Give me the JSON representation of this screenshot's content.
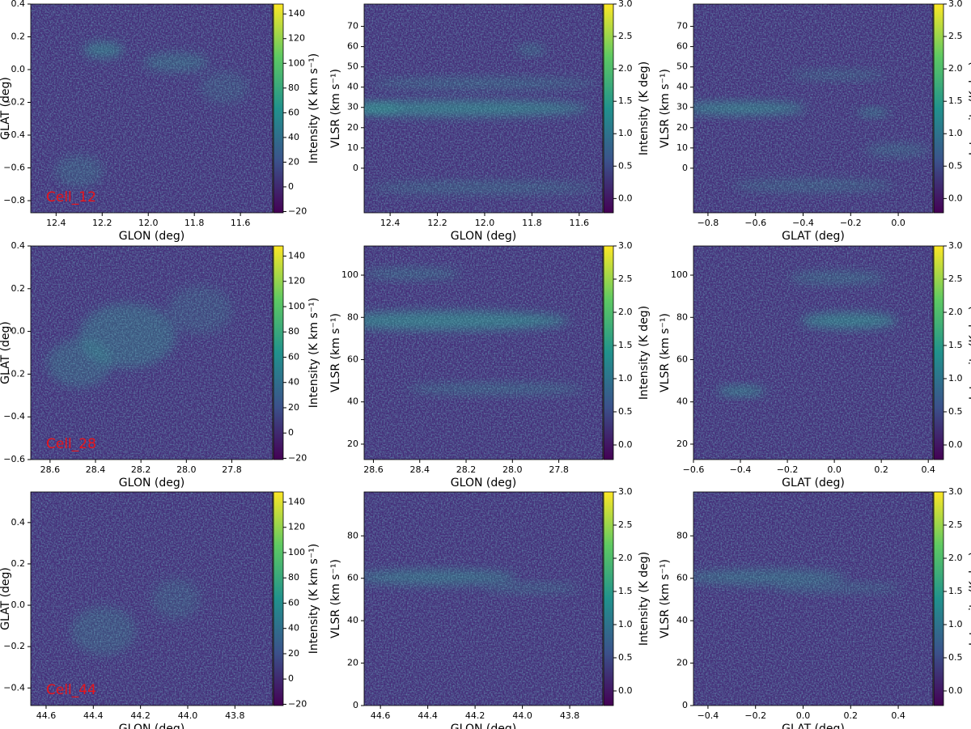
{
  "chart_data": [
    {
      "type": "heatmap",
      "xlabel": "GLON (deg)",
      "ylabel": "GLAT (deg)",
      "xlim": [
        12.51,
        11.46
      ],
      "ylim": [
        -0.874,
        0.4
      ],
      "xticks": [
        12.4,
        12.2,
        {
          "value": 12,
          "label": "12.0"
        },
        11.8,
        11.6
      ],
      "yticks": [
        0.4,
        0.2,
        {
          "value": 0,
          "label": "0.0"
        },
        {
          "value": -0.2,
          "label": "−0.2"
        },
        {
          "value": -0.4,
          "label": "−0.4"
        },
        {
          "value": -0.6,
          "label": "−0.6"
        },
        {
          "value": -0.8,
          "label": "−0.8"
        }
      ],
      "colorbar": {
        "label": "Intensity (K km s⁻¹)",
        "lim": [
          -21,
          148
        ],
        "ticks": [
          {
            "value": -20,
            "label": "−20"
          },
          0,
          20,
          40,
          60,
          80,
          100,
          120,
          140
        ]
      },
      "annotation": "Cell_12"
    },
    {
      "type": "heatmap",
      "xlabel": "GLON (deg)",
      "ylabel": "VLSR (km s⁻¹)",
      "xlim": [
        12.51,
        11.5
      ],
      "ylim": [
        -22,
        81
      ],
      "xticks": [
        12.4,
        12.2,
        {
          "value": 12,
          "label": "12.0"
        },
        11.8,
        11.6
      ],
      "yticks": [
        0,
        10,
        20,
        30,
        40,
        50,
        60,
        70
      ],
      "colorbar": {
        "label": "Intensity (K deg)",
        "lim": [
          -0.22,
          3.0
        ],
        "ticks": [
          {
            "value": 0,
            "label": "0.0"
          },
          0.5,
          {
            "value": 1,
            "label": "1.0"
          },
          1.5,
          {
            "value": 2,
            "label": "2.0"
          },
          2.5,
          {
            "value": 3,
            "label": "3.0"
          }
        ]
      }
    },
    {
      "type": "heatmap",
      "xlabel": "GLAT (deg)",
      "ylabel": "VLSR (km s⁻¹)",
      "xlim": [
        -0.861,
        0.146
      ],
      "ylim": [
        -22,
        81
      ],
      "xticks": [
        {
          "value": -0.8,
          "label": "−0.8"
        },
        {
          "value": -0.6,
          "label": "−0.6"
        },
        {
          "value": -0.4,
          "label": "−0.4"
        },
        {
          "value": -0.2,
          "label": "−0.2"
        },
        {
          "value": 0,
          "label": "0.0"
        }
      ],
      "yticks": [
        0,
        10,
        20,
        30,
        40,
        50,
        60,
        70
      ],
      "colorbar": {
        "label": "Intensity (K deg)",
        "lim": [
          -0.22,
          3.0
        ],
        "ticks": [
          {
            "value": 0,
            "label": "0.0"
          },
          0.5,
          {
            "value": 1,
            "label": "1.0"
          },
          1.5,
          {
            "value": 2,
            "label": "2.0"
          },
          2.5,
          {
            "value": 3,
            "label": "3.0"
          }
        ]
      }
    },
    {
      "type": "heatmap",
      "xlabel": "GLON (deg)",
      "ylabel": "GLAT (deg)",
      "xlim": [
        28.685,
        27.62
      ],
      "ylim": [
        -0.6,
        0.4
      ],
      "xticks": [
        28.6,
        28.4,
        28.2,
        {
          "value": 28,
          "label": "28.0"
        },
        27.8
      ],
      "yticks": [
        0.4,
        0.2,
        {
          "value": 0,
          "label": "0.0"
        },
        {
          "value": -0.2,
          "label": "−0.2"
        },
        {
          "value": -0.4,
          "label": "−0.4"
        },
        {
          "value": -0.6,
          "label": "−0.6"
        }
      ],
      "colorbar": {
        "label": "Intensity (K km s⁻¹)",
        "lim": [
          -21,
          148
        ],
        "ticks": [
          {
            "value": -20,
            "label": "−20"
          },
          0,
          20,
          40,
          60,
          80,
          100,
          120,
          140
        ]
      },
      "annotation": "Cell_28"
    },
    {
      "type": "heatmap",
      "xlabel": "GLON (deg)",
      "ylabel": "VLSR (km s⁻¹)",
      "xlim": [
        28.64,
        27.61
      ],
      "ylim": [
        12.7,
        113.8
      ],
      "xticks": [
        28.6,
        28.4,
        28.2,
        {
          "value": 28,
          "label": "28.0"
        },
        27.8
      ],
      "yticks": [
        20,
        40,
        60,
        80,
        100
      ],
      "colorbar": {
        "label": "Intensity (K deg)",
        "lim": [
          -0.22,
          3.0
        ],
        "ticks": [
          {
            "value": 0,
            "label": "0.0"
          },
          0.5,
          {
            "value": 1,
            "label": "1.0"
          },
          1.5,
          {
            "value": 2,
            "label": "2.0"
          },
          2.5,
          {
            "value": 3,
            "label": "3.0"
          }
        ]
      }
    },
    {
      "type": "heatmap",
      "xlabel": "GLAT (deg)",
      "ylabel": "VLSR (km s⁻¹)",
      "xlim": [
        -0.6,
        0.42
      ],
      "ylim": [
        12.7,
        113.8
      ],
      "xticks": [
        {
          "value": -0.6,
          "label": "−0.6"
        },
        {
          "value": -0.4,
          "label": "−0.4"
        },
        {
          "value": -0.2,
          "label": "−0.2"
        },
        {
          "value": 0,
          "label": "0.0"
        },
        0.2,
        0.4
      ],
      "yticks": [
        20,
        40,
        60,
        80,
        100
      ],
      "colorbar": {
        "label": "Intensity (K deg)",
        "lim": [
          -0.22,
          3.0
        ],
        "ticks": [
          {
            "value": 0,
            "label": "0.0"
          },
          0.5,
          {
            "value": 1,
            "label": "1.0"
          },
          1.5,
          {
            "value": 2,
            "label": "2.0"
          },
          2.5,
          {
            "value": 3,
            "label": "3.0"
          }
        ]
      }
    },
    {
      "type": "heatmap",
      "xlabel": "GLON (deg)",
      "ylabel": "GLAT (deg)",
      "xlim": [
        44.665,
        43.64
      ],
      "ylim": [
        -0.485,
        0.548
      ],
      "xticks": [
        44.6,
        44.4,
        44.2,
        {
          "value": 44,
          "label": "44.0"
        },
        43.8
      ],
      "yticks": [
        {
          "value": -0.4,
          "label": "−0.4"
        },
        {
          "value": -0.2,
          "label": "−0.2"
        },
        {
          "value": 0,
          "label": "0.0"
        },
        0.2,
        0.4
      ],
      "colorbar": {
        "label": "Intensity (K km s⁻¹)",
        "lim": [
          -21,
          148
        ],
        "ticks": [
          {
            "value": -20,
            "label": "−20"
          },
          0,
          20,
          40,
          60,
          80,
          100,
          120,
          140
        ]
      },
      "annotation": "Cell_44"
    },
    {
      "type": "heatmap",
      "xlabel": "GLON (deg)",
      "ylabel": "VLSR (km s⁻¹)",
      "xlim": [
        44.669,
        43.66
      ],
      "ylim": [
        0,
        100.7
      ],
      "xticks": [
        44.6,
        44.4,
        44.2,
        {
          "value": 44,
          "label": "44.0"
        },
        43.8
      ],
      "yticks": [
        0,
        20,
        40,
        60,
        80
      ],
      "colorbar": {
        "label": "Intensity (K deg)",
        "lim": [
          -0.22,
          3.0
        ],
        "ticks": [
          {
            "value": 0,
            "label": "0.0"
          },
          0.5,
          {
            "value": 1,
            "label": "1.0"
          },
          1.5,
          {
            "value": 2,
            "label": "2.0"
          },
          2.5,
          {
            "value": 3,
            "label": "3.0"
          }
        ]
      }
    },
    {
      "type": "heatmap",
      "xlabel": "GLAT (deg)",
      "ylabel": "VLSR (km s⁻¹)",
      "xlim": [
        -0.461,
        0.546
      ],
      "ylim": [
        0,
        100.7
      ],
      "xticks": [
        {
          "value": -0.4,
          "label": "−0.4"
        },
        {
          "value": -0.2,
          "label": "−0.2"
        },
        {
          "value": 0,
          "label": "0.0"
        },
        0.2,
        0.4
      ],
      "yticks": [
        0,
        20,
        40,
        60,
        80
      ],
      "colorbar": {
        "label": "Intensity (K deg)",
        "lim": [
          -0.22,
          3.0
        ],
        "ticks": [
          {
            "value": 0,
            "label": "0.0"
          },
          0.5,
          {
            "value": 1,
            "label": "1.0"
          },
          1.5,
          {
            "value": 2,
            "label": "2.0"
          },
          2.5,
          {
            "value": 3,
            "label": "3.0"
          }
        ]
      }
    }
  ]
}
